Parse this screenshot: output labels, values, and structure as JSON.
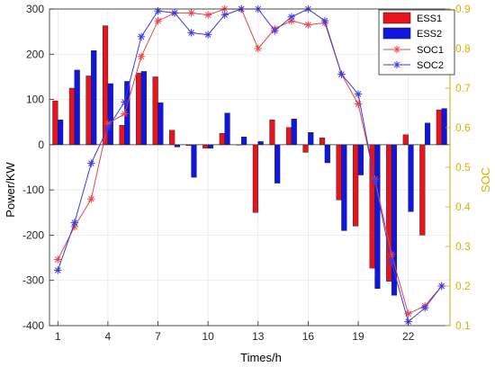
{
  "chart_data": {
    "type": "bar",
    "x": [
      1,
      2,
      3,
      4,
      5,
      6,
      7,
      8,
      9,
      10,
      11,
      12,
      13,
      14,
      15,
      16,
      17,
      18,
      19,
      20,
      21,
      22,
      23,
      24
    ],
    "xticks": [
      "1",
      "4",
      "7",
      "10",
      "13",
      "16",
      "19",
      "22"
    ],
    "xlabel": "Times/h",
    "ylabel_left": "Power/KW",
    "ylabel_right": "SOC",
    "ylim_left": [
      -400,
      300
    ],
    "ylim_right": [
      0.1,
      0.9
    ],
    "yticks_left": [
      "300",
      "200",
      "100",
      "0",
      "-100",
      "-200",
      "-300",
      "-400"
    ],
    "yticks_right": [
      "0.9",
      "0.8",
      "0.7",
      "0.6",
      "0.5",
      "0.4",
      "0.3",
      "0.2",
      "0.1"
    ],
    "grid": true,
    "legend_position": "top-right",
    "series": [
      {
        "name": "ESS1",
        "kind": "bar",
        "color": "#e8141c",
        "values": [
          97,
          125,
          152,
          263,
          43,
          158,
          150,
          32,
          -2,
          -8,
          25,
          0,
          -150,
          55,
          38,
          -17,
          15,
          -122,
          -180,
          -273,
          -302,
          22,
          -200,
          77
        ]
      },
      {
        "name": "ESS2",
        "kind": "bar",
        "color": "#1016e0",
        "values": [
          55,
          165,
          208,
          135,
          140,
          162,
          93,
          -5,
          -72,
          -8,
          70,
          17,
          7,
          -85,
          57,
          27,
          -40,
          -190,
          -67,
          -318,
          -333,
          -148,
          48,
          80
        ]
      },
      {
        "name": "SOC1",
        "kind": "line",
        "axis": "right",
        "color": "#e8454a",
        "values": [
          0.267,
          0.35,
          0.42,
          0.61,
          0.635,
          0.78,
          0.87,
          0.89,
          0.89,
          0.885,
          0.9,
          0.9,
          0.8,
          0.85,
          0.87,
          0.86,
          0.865,
          0.735,
          0.66,
          0.47,
          0.28,
          0.13,
          0.15,
          0.2
        ]
      },
      {
        "name": "SOC2",
        "kind": "line",
        "axis": "right",
        "color": "#3a3ae0",
        "values": [
          0.24,
          0.36,
          0.51,
          0.6,
          0.665,
          0.83,
          0.895,
          0.89,
          0.84,
          0.835,
          0.885,
          0.9,
          0.9,
          0.845,
          0.88,
          0.9,
          0.87,
          0.735,
          0.685,
          0.465,
          0.26,
          0.11,
          0.145,
          0.2
        ]
      }
    ]
  }
}
